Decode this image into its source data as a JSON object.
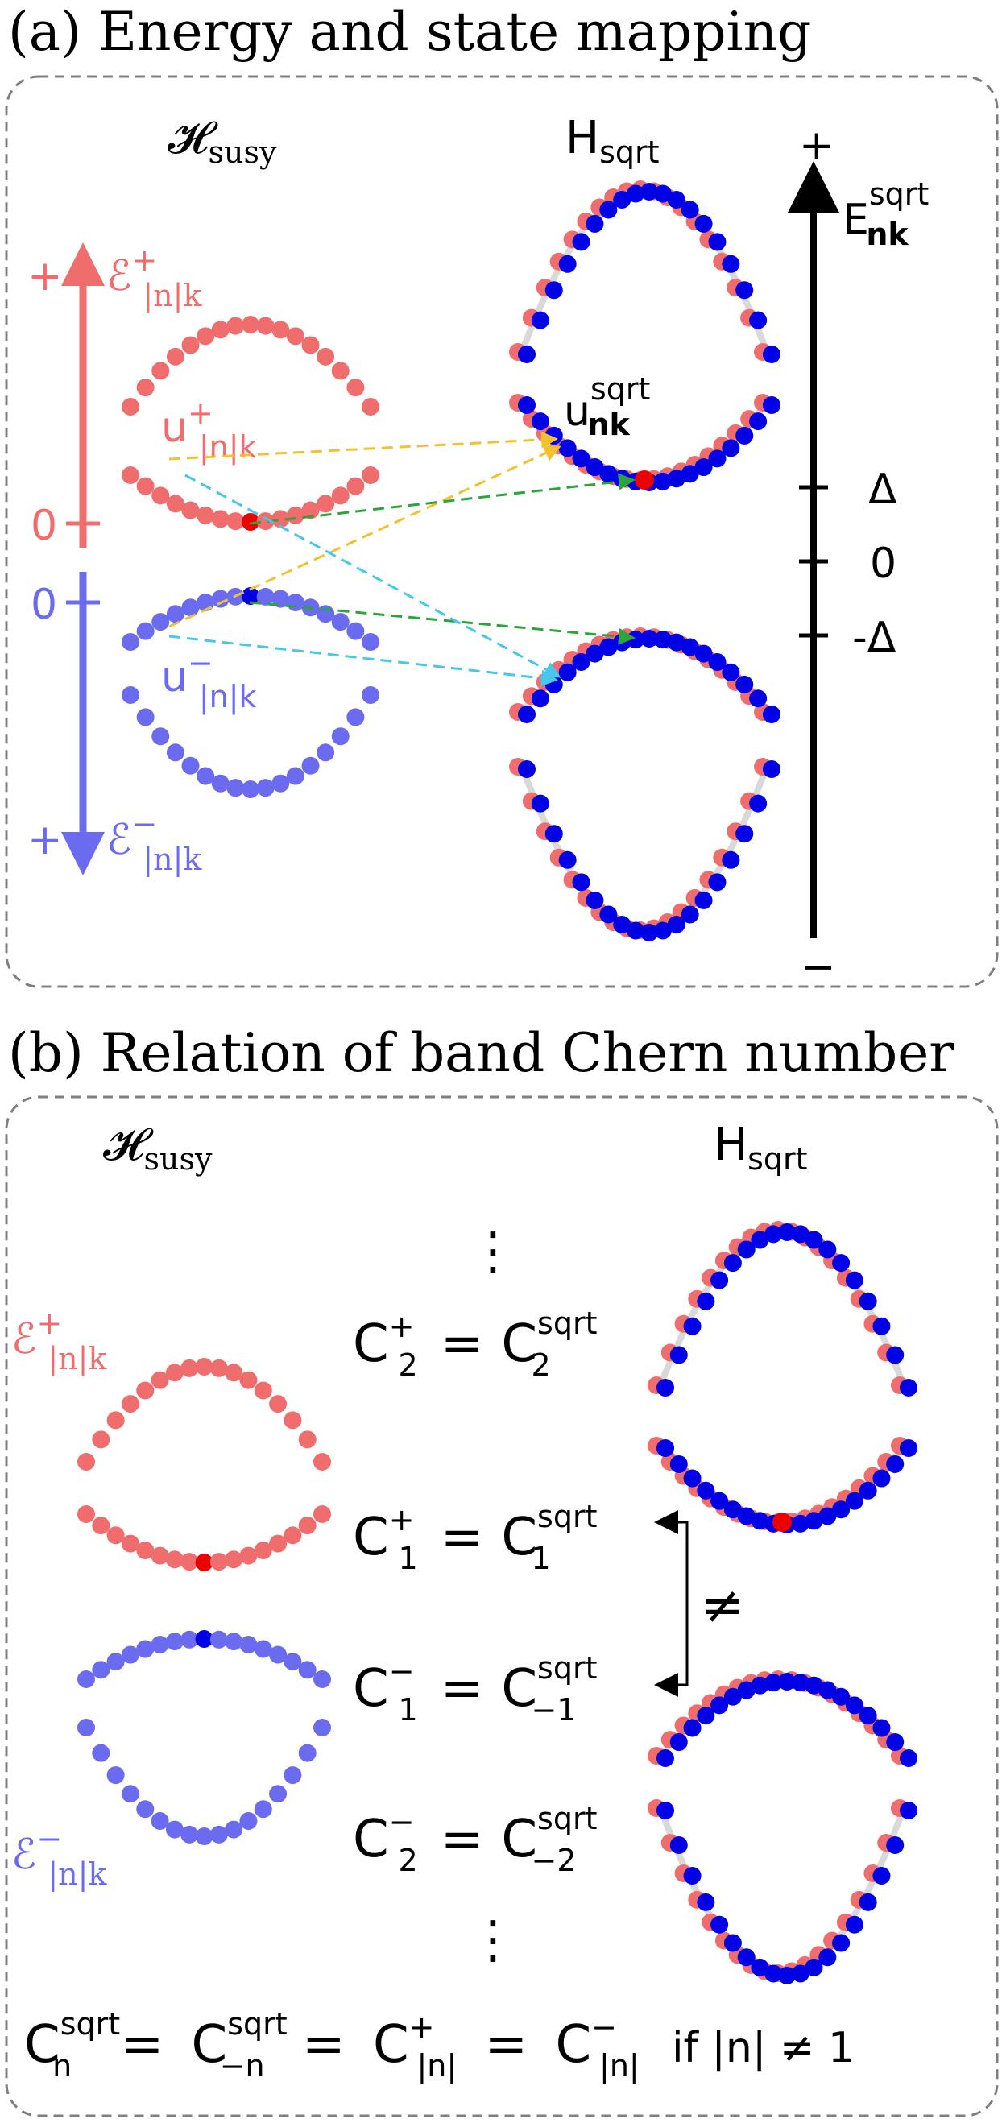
{
  "panel_a": {
    "title": "(a)  Energy and state mapping",
    "h_susy": {
      "base": "𝓗",
      "sub": "susy"
    },
    "h_sqrt": {
      "base": "H",
      "sub": "sqrt"
    },
    "e_plus": {
      "base": "ℰ",
      "sup": "+",
      "sub": "|n|k"
    },
    "e_minus": {
      "base": "ℰ",
      "sup": "−",
      "sub": "|n|k"
    },
    "u_plus": {
      "base": "u",
      "sup": "+",
      "sub": "|n|k"
    },
    "u_minus": {
      "base": "u",
      "sup": "−",
      "sub": "|n|k"
    },
    "u_sqrt": {
      "base": "u",
      "sup": "sqrt",
      "sub": "nk"
    },
    "e_sqrt": {
      "base": "E",
      "sup": "sqrt",
      "sub": "nk"
    },
    "plus_sign": "+",
    "minus_sign": "−",
    "zero": "0",
    "delta": "Δ",
    "neg_delta": "-Δ",
    "colors": {
      "pos_band": "#f06d6d",
      "neg_band": "#6b6bf0",
      "sqrt_dot": "#0000e6",
      "highlight": "#ee0000",
      "arrow_yellow": "#f2c12e",
      "arrow_green": "#2aa53a",
      "arrow_cyan": "#47c6ee"
    }
  },
  "panel_b": {
    "title": "(b)  Relation of band Chern number",
    "h_susy": {
      "base": "𝓗",
      "sub": "susy"
    },
    "h_sqrt": {
      "base": "H",
      "sub": "sqrt"
    },
    "e_plus": {
      "base": "ℰ",
      "sup": "+",
      "sub": "|n|k"
    },
    "e_minus": {
      "base": "ℰ",
      "sup": "−",
      "sub": "|n|k"
    },
    "vdots": "⋮",
    "eq1": {
      "lhs": "C",
      "lsup": "+",
      "lsub": "2",
      "rsup": "sqrt",
      "rsub": "2"
    },
    "eq2": {
      "lhs": "C",
      "lsup": "+",
      "lsub": "1",
      "rsup": "sqrt",
      "rsub": "1"
    },
    "eq3": {
      "lhs": "C",
      "lsup": "−",
      "lsub": "1",
      "rsup": "sqrt",
      "rsub": "−1"
    },
    "eq4": {
      "lhs": "C",
      "lsup": "−",
      "lsub": "2",
      "rsup": "sqrt",
      "rsub": "−2"
    },
    "neq": "≠",
    "equals": "=",
    "bottom": {
      "c1": {
        "base": "C",
        "sup": "sqrt",
        "sub": "n"
      },
      "c2": {
        "base": "C",
        "sup": "sqrt",
        "sub": "−n"
      },
      "c3": {
        "base": "C",
        "sup": "+",
        "sub": "|n|"
      },
      "c4": {
        "base": "C",
        "sup": "−",
        "sub": "|n|"
      },
      "cond": "if |n| ≠ 1"
    }
  }
}
